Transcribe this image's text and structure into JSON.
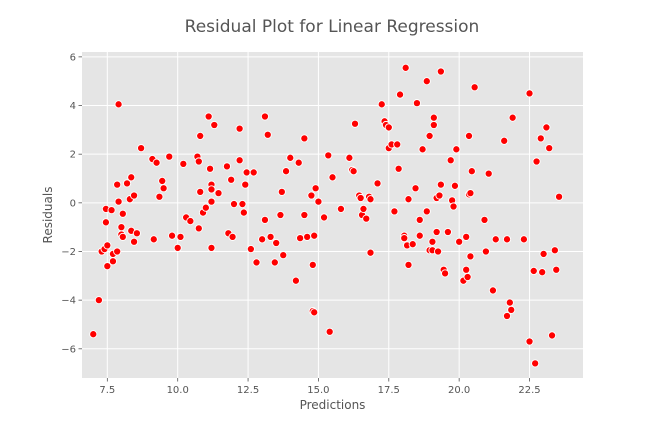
{
  "chart_data": {
    "type": "scatter",
    "title": "Residual Plot for Linear Regression",
    "xlabel": "Predictions",
    "ylabel": "Residuals",
    "xlim": [
      6.6,
      24.4
    ],
    "ylim": [
      -7.2,
      6.2
    ],
    "xticks": [
      7.5,
      10.0,
      12.5,
      15.0,
      17.5,
      20.0,
      22.5
    ],
    "xtick_labels": [
      "7.5",
      "10.0",
      "12.5",
      "15.0",
      "17.5",
      "20.0",
      "22.5"
    ],
    "yticks": [
      -6,
      -4,
      -2,
      0,
      2,
      4,
      6
    ],
    "ytick_labels": [
      "−6",
      "−4",
      "−2",
      "0",
      "2",
      "4",
      "6"
    ],
    "grid": true,
    "colors": {
      "background": "#e5e5e5",
      "grid": "#ffffff",
      "marker": "#ff0000",
      "marker_edge": "#ffffff"
    },
    "points": [
      {
        "x": 7.0,
        "y": -5.4
      },
      {
        "x": 7.2,
        "y": -4.0
      },
      {
        "x": 7.3,
        "y": -2.0
      },
      {
        "x": 7.4,
        "y": -1.9
      },
      {
        "x": 7.5,
        "y": -1.75
      },
      {
        "x": 7.5,
        "y": -2.6
      },
      {
        "x": 7.45,
        "y": -0.8
      },
      {
        "x": 7.45,
        "y": -0.25
      },
      {
        "x": 7.65,
        "y": -0.3
      },
      {
        "x": 7.7,
        "y": -2.1
      },
      {
        "x": 7.7,
        "y": -2.4
      },
      {
        "x": 7.85,
        "y": -2.0
      },
      {
        "x": 7.85,
        "y": 0.75
      },
      {
        "x": 7.9,
        "y": 4.05
      },
      {
        "x": 7.9,
        "y": 0.05
      },
      {
        "x": 8.0,
        "y": -1.0
      },
      {
        "x": 8.0,
        "y": -1.3
      },
      {
        "x": 8.05,
        "y": -1.4
      },
      {
        "x": 8.05,
        "y": -0.45
      },
      {
        "x": 8.2,
        "y": 0.8
      },
      {
        "x": 8.3,
        "y": 0.15
      },
      {
        "x": 8.35,
        "y": 1.05
      },
      {
        "x": 8.35,
        "y": -1.15
      },
      {
        "x": 8.45,
        "y": -1.6
      },
      {
        "x": 8.45,
        "y": 0.3
      },
      {
        "x": 8.55,
        "y": -1.25
      },
      {
        "x": 8.7,
        "y": 2.25
      },
      {
        "x": 9.1,
        "y": 1.8
      },
      {
        "x": 9.15,
        "y": -1.5
      },
      {
        "x": 9.25,
        "y": 1.65
      },
      {
        "x": 9.35,
        "y": 0.25
      },
      {
        "x": 9.45,
        "y": 0.9
      },
      {
        "x": 9.5,
        "y": 0.6
      },
      {
        "x": 9.7,
        "y": 1.9
      },
      {
        "x": 9.8,
        "y": -1.35
      },
      {
        "x": 10.0,
        "y": -1.85
      },
      {
        "x": 10.2,
        "y": 1.6
      },
      {
        "x": 10.3,
        "y": -0.6
      },
      {
        "x": 10.45,
        "y": -0.75
      },
      {
        "x": 10.1,
        "y": -1.4
      },
      {
        "x": 10.7,
        "y": 1.9
      },
      {
        "x": 10.75,
        "y": 1.7
      },
      {
        "x": 10.75,
        "y": -1.05
      },
      {
        "x": 10.8,
        "y": 2.75
      },
      {
        "x": 10.8,
        "y": 0.45
      },
      {
        "x": 10.9,
        "y": -0.4
      },
      {
        "x": 11.0,
        "y": -0.2
      },
      {
        "x": 11.1,
        "y": 3.55
      },
      {
        "x": 11.15,
        "y": 1.4
      },
      {
        "x": 11.2,
        "y": 0.75
      },
      {
        "x": 11.2,
        "y": 0.55
      },
      {
        "x": 11.2,
        "y": 0.05
      },
      {
        "x": 11.2,
        "y": -1.85
      },
      {
        "x": 11.3,
        "y": 3.2
      },
      {
        "x": 11.45,
        "y": 0.4
      },
      {
        "x": 11.75,
        "y": 1.5
      },
      {
        "x": 11.8,
        "y": -1.25
      },
      {
        "x": 11.9,
        "y": 0.95
      },
      {
        "x": 11.95,
        "y": -1.4
      },
      {
        "x": 12.0,
        "y": -0.05
      },
      {
        "x": 12.2,
        "y": 3.05
      },
      {
        "x": 12.2,
        "y": 1.75
      },
      {
        "x": 12.3,
        "y": -0.05
      },
      {
        "x": 12.35,
        "y": -0.4
      },
      {
        "x": 12.4,
        "y": 0.75
      },
      {
        "x": 12.45,
        "y": 1.25
      },
      {
        "x": 12.6,
        "y": -1.9
      },
      {
        "x": 12.7,
        "y": 1.25
      },
      {
        "x": 12.8,
        "y": -2.45
      },
      {
        "x": 13.0,
        "y": -1.5
      },
      {
        "x": 13.1,
        "y": 3.55
      },
      {
        "x": 13.1,
        "y": -0.7
      },
      {
        "x": 13.2,
        "y": 2.8
      },
      {
        "x": 13.3,
        "y": -1.4
      },
      {
        "x": 13.45,
        "y": -2.45
      },
      {
        "x": 13.5,
        "y": -1.65
      },
      {
        "x": 13.65,
        "y": -0.5
      },
      {
        "x": 13.7,
        "y": 0.45
      },
      {
        "x": 13.75,
        "y": -2.15
      },
      {
        "x": 13.85,
        "y": 1.3
      },
      {
        "x": 14.0,
        "y": 1.85
      },
      {
        "x": 14.2,
        "y": -3.2
      },
      {
        "x": 14.3,
        "y": 1.65
      },
      {
        "x": 14.35,
        "y": -1.45
      },
      {
        "x": 14.5,
        "y": -0.5
      },
      {
        "x": 14.5,
        "y": 2.65
      },
      {
        "x": 14.6,
        "y": -1.4
      },
      {
        "x": 14.75,
        "y": 0.3
      },
      {
        "x": 14.8,
        "y": -2.55
      },
      {
        "x": 14.8,
        "y": -4.45
      },
      {
        "x": 14.85,
        "y": -4.5
      },
      {
        "x": 14.85,
        "y": -1.35
      },
      {
        "x": 14.9,
        "y": 0.6
      },
      {
        "x": 15.0,
        "y": 0.05
      },
      {
        "x": 15.2,
        "y": -0.6
      },
      {
        "x": 15.35,
        "y": 1.95
      },
      {
        "x": 15.4,
        "y": -5.3
      },
      {
        "x": 15.5,
        "y": 1.05
      },
      {
        "x": 15.8,
        "y": -0.25
      },
      {
        "x": 16.1,
        "y": 1.85
      },
      {
        "x": 16.2,
        "y": 1.35
      },
      {
        "x": 16.25,
        "y": 1.3
      },
      {
        "x": 16.3,
        "y": 3.25
      },
      {
        "x": 16.45,
        "y": 0.3
      },
      {
        "x": 16.5,
        "y": 0.2
      },
      {
        "x": 16.55,
        "y": -0.5
      },
      {
        "x": 16.6,
        "y": -0.25
      },
      {
        "x": 16.7,
        "y": -0.65
      },
      {
        "x": 16.8,
        "y": 0.25
      },
      {
        "x": 16.85,
        "y": 0.15
      },
      {
        "x": 16.85,
        "y": -2.05
      },
      {
        "x": 17.1,
        "y": 0.8
      },
      {
        "x": 17.25,
        "y": 4.05
      },
      {
        "x": 17.35,
        "y": 3.35
      },
      {
        "x": 17.4,
        "y": 3.2
      },
      {
        "x": 17.5,
        "y": 3.1
      },
      {
        "x": 17.5,
        "y": 2.25
      },
      {
        "x": 17.6,
        "y": 2.4
      },
      {
        "x": 17.7,
        "y": -0.35
      },
      {
        "x": 17.8,
        "y": 2.4
      },
      {
        "x": 17.85,
        "y": 1.4
      },
      {
        "x": 17.9,
        "y": 4.45
      },
      {
        "x": 18.05,
        "y": -1.35
      },
      {
        "x": 18.05,
        "y": -1.45
      },
      {
        "x": 18.1,
        "y": 5.55
      },
      {
        "x": 18.15,
        "y": -1.75
      },
      {
        "x": 18.2,
        "y": -2.55
      },
      {
        "x": 18.2,
        "y": 0.15
      },
      {
        "x": 18.35,
        "y": -1.7
      },
      {
        "x": 18.45,
        "y": 0.6
      },
      {
        "x": 18.5,
        "y": 4.1
      },
      {
        "x": 18.6,
        "y": -0.7
      },
      {
        "x": 18.6,
        "y": -1.35
      },
      {
        "x": 18.7,
        "y": 2.2
      },
      {
        "x": 18.85,
        "y": 5.0
      },
      {
        "x": 18.85,
        "y": -0.35
      },
      {
        "x": 18.95,
        "y": 2.75
      },
      {
        "x": 18.95,
        "y": -1.95
      },
      {
        "x": 19.05,
        "y": -1.6
      },
      {
        "x": 19.05,
        "y": -1.95
      },
      {
        "x": 19.1,
        "y": 3.5
      },
      {
        "x": 19.1,
        "y": 3.2
      },
      {
        "x": 19.2,
        "y": -1.2
      },
      {
        "x": 19.2,
        "y": 0.2
      },
      {
        "x": 19.25,
        "y": -2.0
      },
      {
        "x": 19.3,
        "y": 0.3
      },
      {
        "x": 19.35,
        "y": 5.4
      },
      {
        "x": 19.35,
        "y": 0.75
      },
      {
        "x": 19.45,
        "y": -2.75
      },
      {
        "x": 19.5,
        "y": -2.9
      },
      {
        "x": 19.6,
        "y": -1.2
      },
      {
        "x": 19.7,
        "y": 1.75
      },
      {
        "x": 19.75,
        "y": 0.1
      },
      {
        "x": 19.8,
        "y": -0.15
      },
      {
        "x": 19.85,
        "y": 0.7
      },
      {
        "x": 19.9,
        "y": 2.2
      },
      {
        "x": 20.0,
        "y": -1.6
      },
      {
        "x": 20.15,
        "y": -3.2
      },
      {
        "x": 20.25,
        "y": -1.4
      },
      {
        "x": 20.25,
        "y": -2.75
      },
      {
        "x": 20.3,
        "y": -3.05
      },
      {
        "x": 20.35,
        "y": 0.35
      },
      {
        "x": 20.35,
        "y": 2.75
      },
      {
        "x": 20.4,
        "y": 0.4
      },
      {
        "x": 20.4,
        "y": -2.2
      },
      {
        "x": 20.45,
        "y": 1.3
      },
      {
        "x": 20.55,
        "y": 4.75
      },
      {
        "x": 20.9,
        "y": -0.7
      },
      {
        "x": 20.95,
        "y": -2.0
      },
      {
        "x": 21.05,
        "y": 1.2
      },
      {
        "x": 21.2,
        "y": -3.6
      },
      {
        "x": 21.3,
        "y": -1.5
      },
      {
        "x": 21.6,
        "y": 2.55
      },
      {
        "x": 21.7,
        "y": -1.5
      },
      {
        "x": 21.7,
        "y": -4.65
      },
      {
        "x": 21.8,
        "y": -4.1
      },
      {
        "x": 21.85,
        "y": -4.4
      },
      {
        "x": 21.9,
        "y": 3.5
      },
      {
        "x": 22.3,
        "y": -1.5
      },
      {
        "x": 22.5,
        "y": 4.5
      },
      {
        "x": 22.5,
        "y": -5.7
      },
      {
        "x": 22.65,
        "y": -2.8
      },
      {
        "x": 22.7,
        "y": -6.6
      },
      {
        "x": 22.75,
        "y": 1.7
      },
      {
        "x": 22.9,
        "y": 2.65
      },
      {
        "x": 22.95,
        "y": -2.85
      },
      {
        "x": 23.0,
        "y": -2.1
      },
      {
        "x": 23.1,
        "y": 3.1
      },
      {
        "x": 23.2,
        "y": 2.25
      },
      {
        "x": 23.3,
        "y": -5.45
      },
      {
        "x": 23.4,
        "y": -1.95
      },
      {
        "x": 23.45,
        "y": -2.75
      },
      {
        "x": 23.55,
        "y": 0.25
      }
    ]
  }
}
